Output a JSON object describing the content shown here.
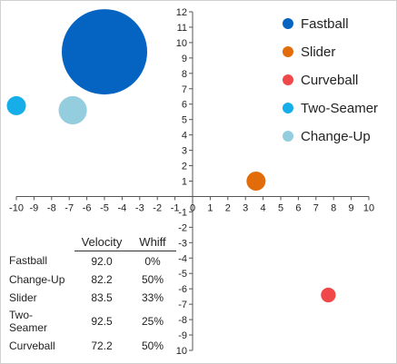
{
  "chart_data": {
    "type": "scatter",
    "variant": "bubble",
    "title": "",
    "xlabel": "",
    "ylabel": "",
    "xlim": [
      -10,
      10
    ],
    "ylim": [
      -10,
      12
    ],
    "x_ticks": [
      -10,
      -9,
      -8,
      -7,
      -6,
      -5,
      -4,
      -3,
      -2,
      -1,
      0,
      1,
      2,
      3,
      4,
      5,
      6,
      7,
      8,
      9,
      10
    ],
    "y_ticks": [
      -10,
      -9,
      -8,
      -7,
      -6,
      -5,
      -4,
      -3,
      -2,
      -1,
      0,
      1,
      2,
      3,
      4,
      5,
      6,
      7,
      8,
      9,
      10,
      11,
      12
    ],
    "grid": false,
    "legend_position": "top-right",
    "series": [
      {
        "name": "Fastball",
        "x": -5.0,
        "y": 9.4,
        "size": 1.0,
        "color": "#0563c1"
      },
      {
        "name": "Slider",
        "x": 3.6,
        "y": 1.0,
        "size": 0.05,
        "color": "#e36c0a"
      },
      {
        "name": "Curveball",
        "x": 7.7,
        "y": -6.4,
        "size": 0.03,
        "color": "#f04848"
      },
      {
        "name": "Two-Seamer",
        "x": -10.0,
        "y": 5.9,
        "size": 0.05,
        "color": "#16aee8"
      },
      {
        "name": "Change-Up",
        "x": -6.8,
        "y": 5.6,
        "size": 0.11,
        "color": "#94cddd"
      }
    ]
  },
  "table": {
    "headers": {
      "name": "",
      "velocity": "Velocity",
      "whiff": "Whiff"
    },
    "rows": [
      {
        "name": "Fastball",
        "velocity": "92.0",
        "whiff": "0%"
      },
      {
        "name": "Change-Up",
        "velocity": "82.2",
        "whiff": "50%"
      },
      {
        "name": "Slider",
        "velocity": "83.5",
        "whiff": "33%"
      },
      {
        "name": "Two-Seamer",
        "velocity": "92.5",
        "whiff": "25%"
      },
      {
        "name": "Curveball",
        "velocity": "72.2",
        "whiff": "50%"
      }
    ]
  }
}
